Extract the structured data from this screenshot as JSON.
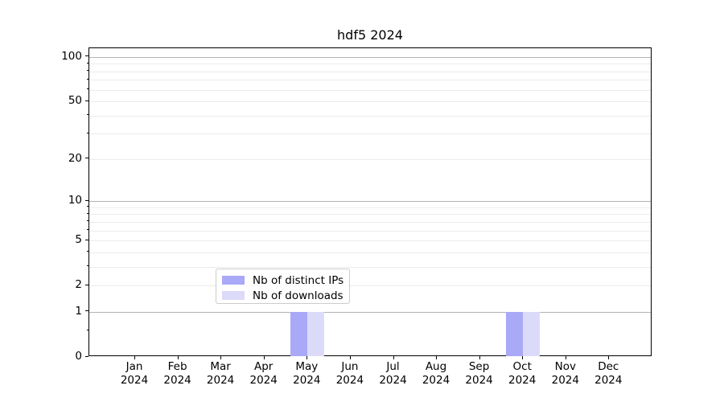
{
  "title": "hdf5 2024",
  "chart_data": {
    "type": "bar",
    "title": "hdf5 2024",
    "x_categories": [
      {
        "month": "Jan",
        "year": "2024"
      },
      {
        "month": "Feb",
        "year": "2024"
      },
      {
        "month": "Mar",
        "year": "2024"
      },
      {
        "month": "Apr",
        "year": "2024"
      },
      {
        "month": "May",
        "year": "2024"
      },
      {
        "month": "Jun",
        "year": "2024"
      },
      {
        "month": "Jul",
        "year": "2024"
      },
      {
        "month": "Aug",
        "year": "2024"
      },
      {
        "month": "Sep",
        "year": "2024"
      },
      {
        "month": "Oct",
        "year": "2024"
      },
      {
        "month": "Nov",
        "year": "2024"
      },
      {
        "month": "Dec",
        "year": "2024"
      }
    ],
    "series": [
      {
        "name": "Nb of distinct IPs",
        "color": "#a9a9f7",
        "values": [
          0,
          0,
          0,
          0,
          1,
          0,
          0,
          0,
          0,
          1,
          0,
          0
        ]
      },
      {
        "name": "Nb of downloads",
        "color": "#dbdbf9",
        "values": [
          0,
          0,
          0,
          0,
          1,
          0,
          0,
          0,
          0,
          1,
          0,
          0
        ]
      }
    ],
    "y_axis": {
      "scale": "symlog",
      "ylim": [
        0,
        115
      ],
      "ticks": [
        {
          "value": 0,
          "label": "0"
        },
        {
          "value": 1,
          "label": "1"
        },
        {
          "value": 2,
          "label": "2"
        },
        {
          "value": 5,
          "label": "5"
        },
        {
          "value": 10,
          "label": "10"
        },
        {
          "value": 20,
          "label": "20"
        },
        {
          "value": 50,
          "label": "50"
        },
        {
          "value": 100,
          "label": "100"
        }
      ],
      "minor_tick_values": [
        0.5,
        2,
        3,
        4,
        5,
        6,
        7,
        8,
        9,
        20,
        30,
        40,
        50,
        60,
        70,
        80,
        90
      ],
      "major_grid_values": [
        1,
        10,
        100
      ],
      "minor_grid_values": [
        2,
        3,
        4,
        5,
        6,
        7,
        8,
        9,
        20,
        30,
        40,
        50,
        60,
        70,
        80,
        90
      ]
    },
    "grid": true,
    "legend_position": "lower center"
  },
  "colors": {
    "distinct_ips_bar": "#a9a9f7",
    "downloads_bar": "#dbdbf9",
    "grid_major": "#b2b2b2",
    "grid_minor": "#ebebeb",
    "spine": "#000000",
    "legend_border": "#cccccc"
  }
}
